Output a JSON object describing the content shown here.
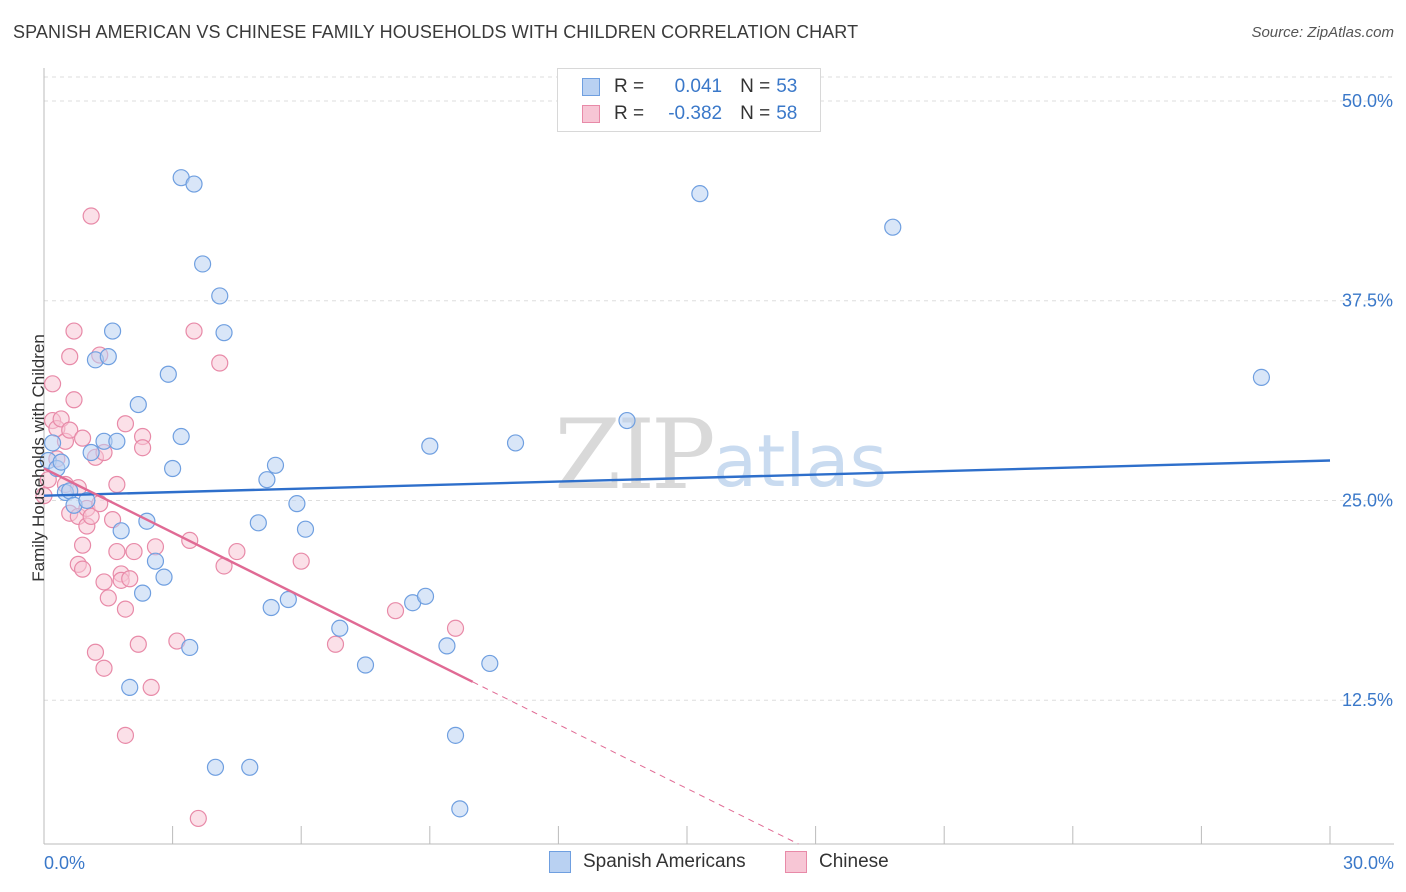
{
  "header": {
    "title": "SPANISH AMERICAN VS CHINESE FAMILY HOUSEHOLDS WITH CHILDREN CORRELATION CHART",
    "source": "Source: ZipAtlas.com"
  },
  "watermark": {
    "zip": "ZIP",
    "atlas": "atlas"
  },
  "colors": {
    "blue_fill": "#b9d1f2",
    "blue_stroke": "#6f9fe0",
    "blue_line": "#2e6fcb",
    "pink_fill": "#f7c6d5",
    "pink_stroke": "#e88aa8",
    "pink_line": "#e06a94",
    "axis_text": "#3a78c9",
    "grid": "#dddddd"
  },
  "legend_top": {
    "rows": [
      {
        "r_label": "R =",
        "r_value": "0.041",
        "n_label": "N =",
        "n_value": "53"
      },
      {
        "r_label": "R =",
        "r_value": "-0.382",
        "n_label": "N =",
        "n_value": "58"
      }
    ]
  },
  "legend_bottom": {
    "items": [
      {
        "label": "Spanish Americans"
      },
      {
        "label": "Chinese"
      }
    ]
  },
  "chart_data": {
    "type": "scatter",
    "title": "SPANISH AMERICAN VS CHINESE FAMILY HOUSEHOLDS WITH CHILDREN CORRELATION CHART",
    "xlabel": "",
    "ylabel": "Family Households with Children",
    "xlim": [
      0,
      30
    ],
    "ylim": [
      3.5,
      51.5
    ],
    "x_tick_labels": [
      {
        "value": 0,
        "label": "0.0%"
      },
      {
        "value": 30,
        "label": "30.0%"
      }
    ],
    "y_ticks": [
      {
        "value": 12.5,
        "label": "12.5%"
      },
      {
        "value": 25.0,
        "label": "25.0%"
      },
      {
        "value": 37.5,
        "label": "37.5%"
      },
      {
        "value": 50.0,
        "label": "50.0%"
      }
    ],
    "x_minor_ticks": [
      0,
      3,
      6,
      9,
      12,
      15,
      18,
      21,
      24,
      27,
      30
    ],
    "grid": true,
    "series": [
      {
        "name": "Spanish Americans",
        "color": "#6f9fe0",
        "r": 0.041,
        "n": 53,
        "trend": {
          "x0": 0,
          "y0": 25.3,
          "x1": 30,
          "y1": 27.5,
          "solid_to": 30
        },
        "points": [
          [
            0.1,
            27.5
          ],
          [
            0.2,
            28.6
          ],
          [
            0.3,
            27.0
          ],
          [
            0.4,
            27.4
          ],
          [
            0.5,
            25.5
          ],
          [
            0.6,
            25.6
          ],
          [
            0.7,
            24.7
          ],
          [
            1.0,
            25.0
          ],
          [
            1.1,
            28.0
          ],
          [
            1.2,
            33.8
          ],
          [
            1.4,
            28.7
          ],
          [
            1.5,
            34.0
          ],
          [
            1.6,
            35.6
          ],
          [
            1.7,
            28.7
          ],
          [
            1.8,
            23.1
          ],
          [
            2.0,
            13.3
          ],
          [
            2.2,
            31.0
          ],
          [
            2.3,
            19.2
          ],
          [
            2.4,
            23.7
          ],
          [
            2.6,
            21.2
          ],
          [
            2.8,
            20.2
          ],
          [
            2.9,
            32.9
          ],
          [
            3.0,
            27.0
          ],
          [
            3.2,
            29.0
          ],
          [
            3.4,
            15.8
          ],
          [
            3.2,
            45.2
          ],
          [
            3.5,
            44.8
          ],
          [
            3.7,
            39.8
          ],
          [
            4.0,
            8.3
          ],
          [
            4.1,
            37.8
          ],
          [
            4.2,
            35.5
          ],
          [
            4.8,
            8.3
          ],
          [
            5.0,
            23.6
          ],
          [
            5.2,
            26.3
          ],
          [
            5.3,
            18.3
          ],
          [
            5.4,
            27.2
          ],
          [
            5.7,
            18.8
          ],
          [
            5.9,
            24.8
          ],
          [
            6.1,
            23.2
          ],
          [
            6.9,
            17.0
          ],
          [
            7.5,
            14.7
          ],
          [
            8.6,
            18.6
          ],
          [
            8.9,
            19.0
          ],
          [
            9.0,
            28.4
          ],
          [
            9.4,
            15.9
          ],
          [
            9.6,
            10.3
          ],
          [
            9.7,
            5.7
          ],
          [
            10.4,
            14.8
          ],
          [
            11.0,
            28.6
          ],
          [
            13.6,
            30.0
          ],
          [
            15.3,
            44.2
          ],
          [
            19.8,
            42.1
          ],
          [
            28.4,
            32.7
          ]
        ]
      },
      {
        "name": "Chinese",
        "color": "#e88aa8",
        "r": -0.382,
        "n": 58,
        "trend": {
          "x0": 0,
          "y0": 27.0,
          "x1": 17.6,
          "y1": 3.5,
          "solid_to": 10.0
        },
        "points": [
          [
            0.0,
            25.3
          ],
          [
            0.1,
            26.3
          ],
          [
            0.2,
            32.3
          ],
          [
            0.2,
            30.0
          ],
          [
            0.3,
            29.5
          ],
          [
            0.3,
            27.6
          ],
          [
            0.4,
            30.1
          ],
          [
            0.5,
            26.0
          ],
          [
            0.5,
            28.7
          ],
          [
            0.6,
            34.0
          ],
          [
            0.6,
            29.4
          ],
          [
            0.7,
            31.3
          ],
          [
            0.6,
            24.2
          ],
          [
            0.8,
            25.8
          ],
          [
            0.8,
            24.0
          ],
          [
            0.7,
            35.6
          ],
          [
            0.9,
            28.9
          ],
          [
            0.8,
            21.0
          ],
          [
            0.9,
            22.2
          ],
          [
            0.9,
            20.7
          ],
          [
            1.0,
            23.4
          ],
          [
            1.0,
            24.5
          ],
          [
            1.1,
            24.0
          ],
          [
            1.1,
            42.8
          ],
          [
            1.2,
            27.7
          ],
          [
            1.2,
            15.5
          ],
          [
            1.3,
            34.1
          ],
          [
            1.3,
            24.8
          ],
          [
            1.4,
            28.0
          ],
          [
            1.4,
            14.5
          ],
          [
            1.4,
            19.9
          ],
          [
            1.5,
            18.9
          ],
          [
            1.6,
            23.8
          ],
          [
            1.7,
            26.0
          ],
          [
            1.7,
            21.8
          ],
          [
            1.8,
            20.4
          ],
          [
            1.8,
            20.0
          ],
          [
            1.9,
            18.2
          ],
          [
            1.9,
            29.8
          ],
          [
            2.0,
            20.1
          ],
          [
            1.9,
            10.3
          ],
          [
            2.1,
            21.8
          ],
          [
            2.2,
            16.0
          ],
          [
            2.3,
            29.0
          ],
          [
            2.3,
            28.3
          ],
          [
            2.5,
            13.3
          ],
          [
            2.6,
            22.1
          ],
          [
            3.1,
            16.2
          ],
          [
            3.4,
            22.5
          ],
          [
            3.5,
            35.6
          ],
          [
            3.6,
            5.1
          ],
          [
            4.1,
            33.6
          ],
          [
            4.2,
            20.9
          ],
          [
            4.5,
            21.8
          ],
          [
            6.0,
            21.2
          ],
          [
            6.8,
            16.0
          ],
          [
            8.2,
            18.1
          ],
          [
            9.6,
            17.0
          ]
        ]
      }
    ]
  }
}
